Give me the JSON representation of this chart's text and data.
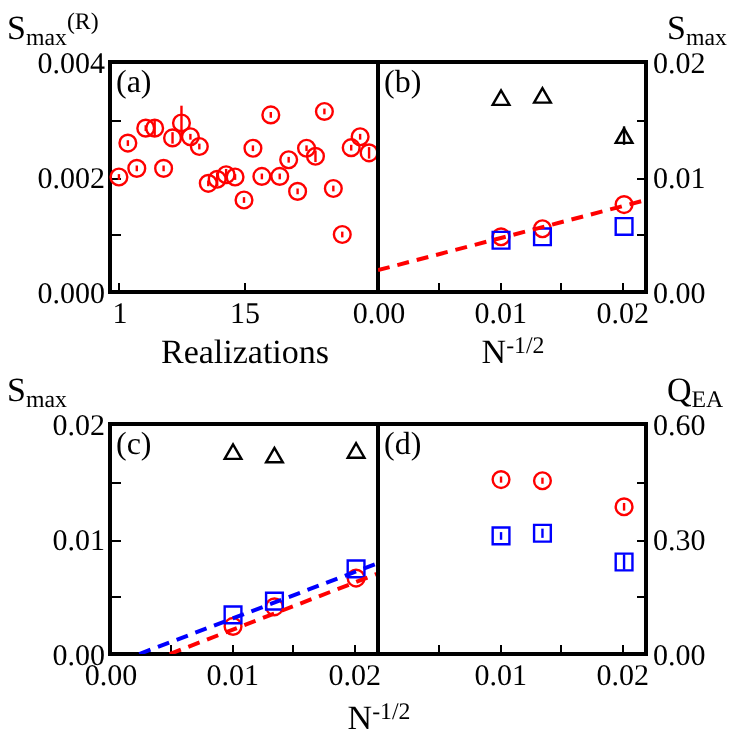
{
  "chart_data": [
    {
      "type": "scatter",
      "annotations": [
        "(a)"
      ],
      "xlabel": "Realizations",
      "ylabel": "S$_{max}$$^{(R)}$",
      "marker": "circle",
      "grid": false,
      "x": [
        1,
        2,
        3,
        4,
        5,
        6,
        7,
        8,
        9,
        10,
        11,
        12,
        13,
        14,
        15,
        16,
        17,
        18,
        19,
        20,
        21,
        22,
        23,
        24,
        25,
        26,
        27,
        28,
        29
      ],
      "series": [
        {
          "color": "#ff0000",
          "values": [
            0.002,
            0.00259,
            0.00215,
            0.00285,
            0.00285,
            0.00215,
            0.00268,
            0.00294,
            0.0027,
            0.00253,
            0.00189,
            0.00196,
            0.00204,
            0.002,
            0.0016,
            0.0025,
            0.00201,
            0.00308,
            0.00201,
            0.0023,
            0.00175,
            0.0025,
            0.00236,
            0.00314,
            0.0018,
            0.001,
            0.00251,
            0.0027,
            0.00242
          ],
          "errors": [
            5e-05,
            5e-05,
            5e-05,
            5e-05,
            0.00015,
            5e-05,
            0.0001,
            0.0003,
            5e-05,
            5e-05,
            5e-05,
            0.00012,
            0.0001,
            5e-05,
            5e-05,
            5e-05,
            5e-05,
            5e-05,
            5e-05,
            5e-05,
            5e-05,
            5e-05,
            0.0001,
            5e-05,
            5e-05,
            5e-05,
            5e-05,
            5e-05,
            0.0001
          ]
        }
      ],
      "xlim": [
        0,
        30
      ],
      "xticks": [
        1,
        15
      ],
      "ylim": [
        0,
        0.004
      ],
      "yticks": [
        {
          "value": 0,
          "label": "0.000"
        },
        {
          "value": 0.001,
          "label": null
        },
        0.002,
        {
          "value": 0.003,
          "label": null
        },
        0.004
      ]
    },
    {
      "type": "scatter",
      "annotations": [
        "(b)"
      ],
      "xlabel": "N$^{-1/2}$",
      "y2label": "S$_{max}$",
      "grid": false,
      "x": [
        0.0101,
        0.0135,
        0.0202
      ],
      "series": [
        {
          "color": "#000000",
          "marker": "triangle",
          "axis": "y2",
          "values": [
            0.0169,
            0.0171,
            0.0136
          ],
          "errors": [
            null,
            null,
            0.0008
          ]
        },
        {
          "color": "#ff0000",
          "marker": "circle",
          "axis": "y2",
          "values": [
            0.0048,
            0.0055,
            0.0076
          ]
        },
        {
          "color": "#0000ff",
          "marker": "square",
          "axis": "y2",
          "values": [
            0.0045,
            0.0048,
            0.0057
          ]
        },
        {
          "type": "line",
          "color": "#ff0000",
          "line_style": "dashed",
          "axis": "y2",
          "x": [
            0,
            0.022
          ],
          "values": [
            0.0019,
            0.008
          ]
        }
      ],
      "xlim": [
        0,
        0.022
      ],
      "xticks": [
        {
          "value": 0,
          "label": "0.00"
        },
        {
          "value": 0.005,
          "label": null
        },
        0.01,
        {
          "value": 0.015,
          "label": null
        },
        0.02
      ],
      "y2lim": [
        0,
        0.02
      ],
      "y2ticks": [
        {
          "value": 0,
          "label": "0.00"
        },
        {
          "value": 0.005,
          "label": null
        },
        0.01,
        {
          "value": 0.015,
          "label": null
        },
        0.02
      ]
    },
    {
      "type": "scatter",
      "annotations": [
        "(c)"
      ],
      "xlabel": "N$^{-1/2}$",
      "ylabel": "S$_{max}$",
      "grid": false,
      "x": [
        0.0101,
        0.0135,
        0.0202
      ],
      "series": [
        {
          "color": "#000000",
          "marker": "triangle",
          "values": [
            0.0176,
            0.0173,
            0.0177
          ]
        },
        {
          "color": "#ff0000",
          "marker": "circle",
          "values": [
            0.0024,
            0.0041,
            0.0066
          ]
        },
        {
          "color": "#0000ff",
          "marker": "square",
          "values": [
            0.0034,
            0.0046,
            0.0074
          ]
        },
        {
          "type": "line",
          "color": "#0000ff",
          "line_style": "dashed",
          "x": [
            0.0024,
            0.022
          ],
          "values": [
            0,
            0.0079
          ]
        },
        {
          "type": "line",
          "color": "#ff0000",
          "line_style": "dashed",
          "x": [
            0.0049,
            0.022
          ],
          "values": [
            0,
            0.007
          ]
        }
      ],
      "xlim": [
        0,
        0.022
      ],
      "xticks": [
        {
          "value": 0,
          "label": "0.00"
        },
        {
          "value": 0.005,
          "label": null
        },
        0.01,
        {
          "value": 0.015,
          "label": null
        },
        0.02
      ],
      "ylim": [
        0,
        0.02
      ],
      "yticks": [
        {
          "value": 0,
          "label": "0.00"
        },
        {
          "value": 0.005,
          "label": null
        },
        0.01,
        {
          "value": 0.015,
          "label": null
        },
        0.02
      ]
    },
    {
      "type": "scatter",
      "annotations": [
        "(d)"
      ],
      "y2label": "Q$_{EA}$",
      "grid": false,
      "x": [
        0.0101,
        0.0135,
        0.0202
      ],
      "series": [
        {
          "color": "#ff0000",
          "marker": "circle",
          "axis": "y2",
          "values": [
            0.455,
            0.452,
            0.384
          ],
          "errors": [
            0.008,
            0.008,
            0.01
          ]
        },
        {
          "color": "#0000ff",
          "marker": "square",
          "axis": "y2",
          "values": [
            0.308,
            0.315,
            0.24
          ],
          "errors": [
            0.01,
            0.012,
            0.02
          ]
        }
      ],
      "xlim": [
        0,
        0.022
      ],
      "xticks": [
        {
          "value": 0,
          "label": null
        },
        {
          "value": 0.005,
          "label": null
        },
        0.01,
        {
          "value": 0.015,
          "label": null
        },
        0.02
      ],
      "y2lim": [
        0,
        0.6
      ],
      "y2ticks": [
        {
          "value": 0,
          "label": "0.00"
        },
        {
          "value": 0.15,
          "label": null
        },
        {
          "value": 0.3,
          "label": "0.30"
        },
        {
          "value": 0.45,
          "label": null
        },
        {
          "value": 0.6,
          "label": "0.60"
        }
      ]
    }
  ]
}
